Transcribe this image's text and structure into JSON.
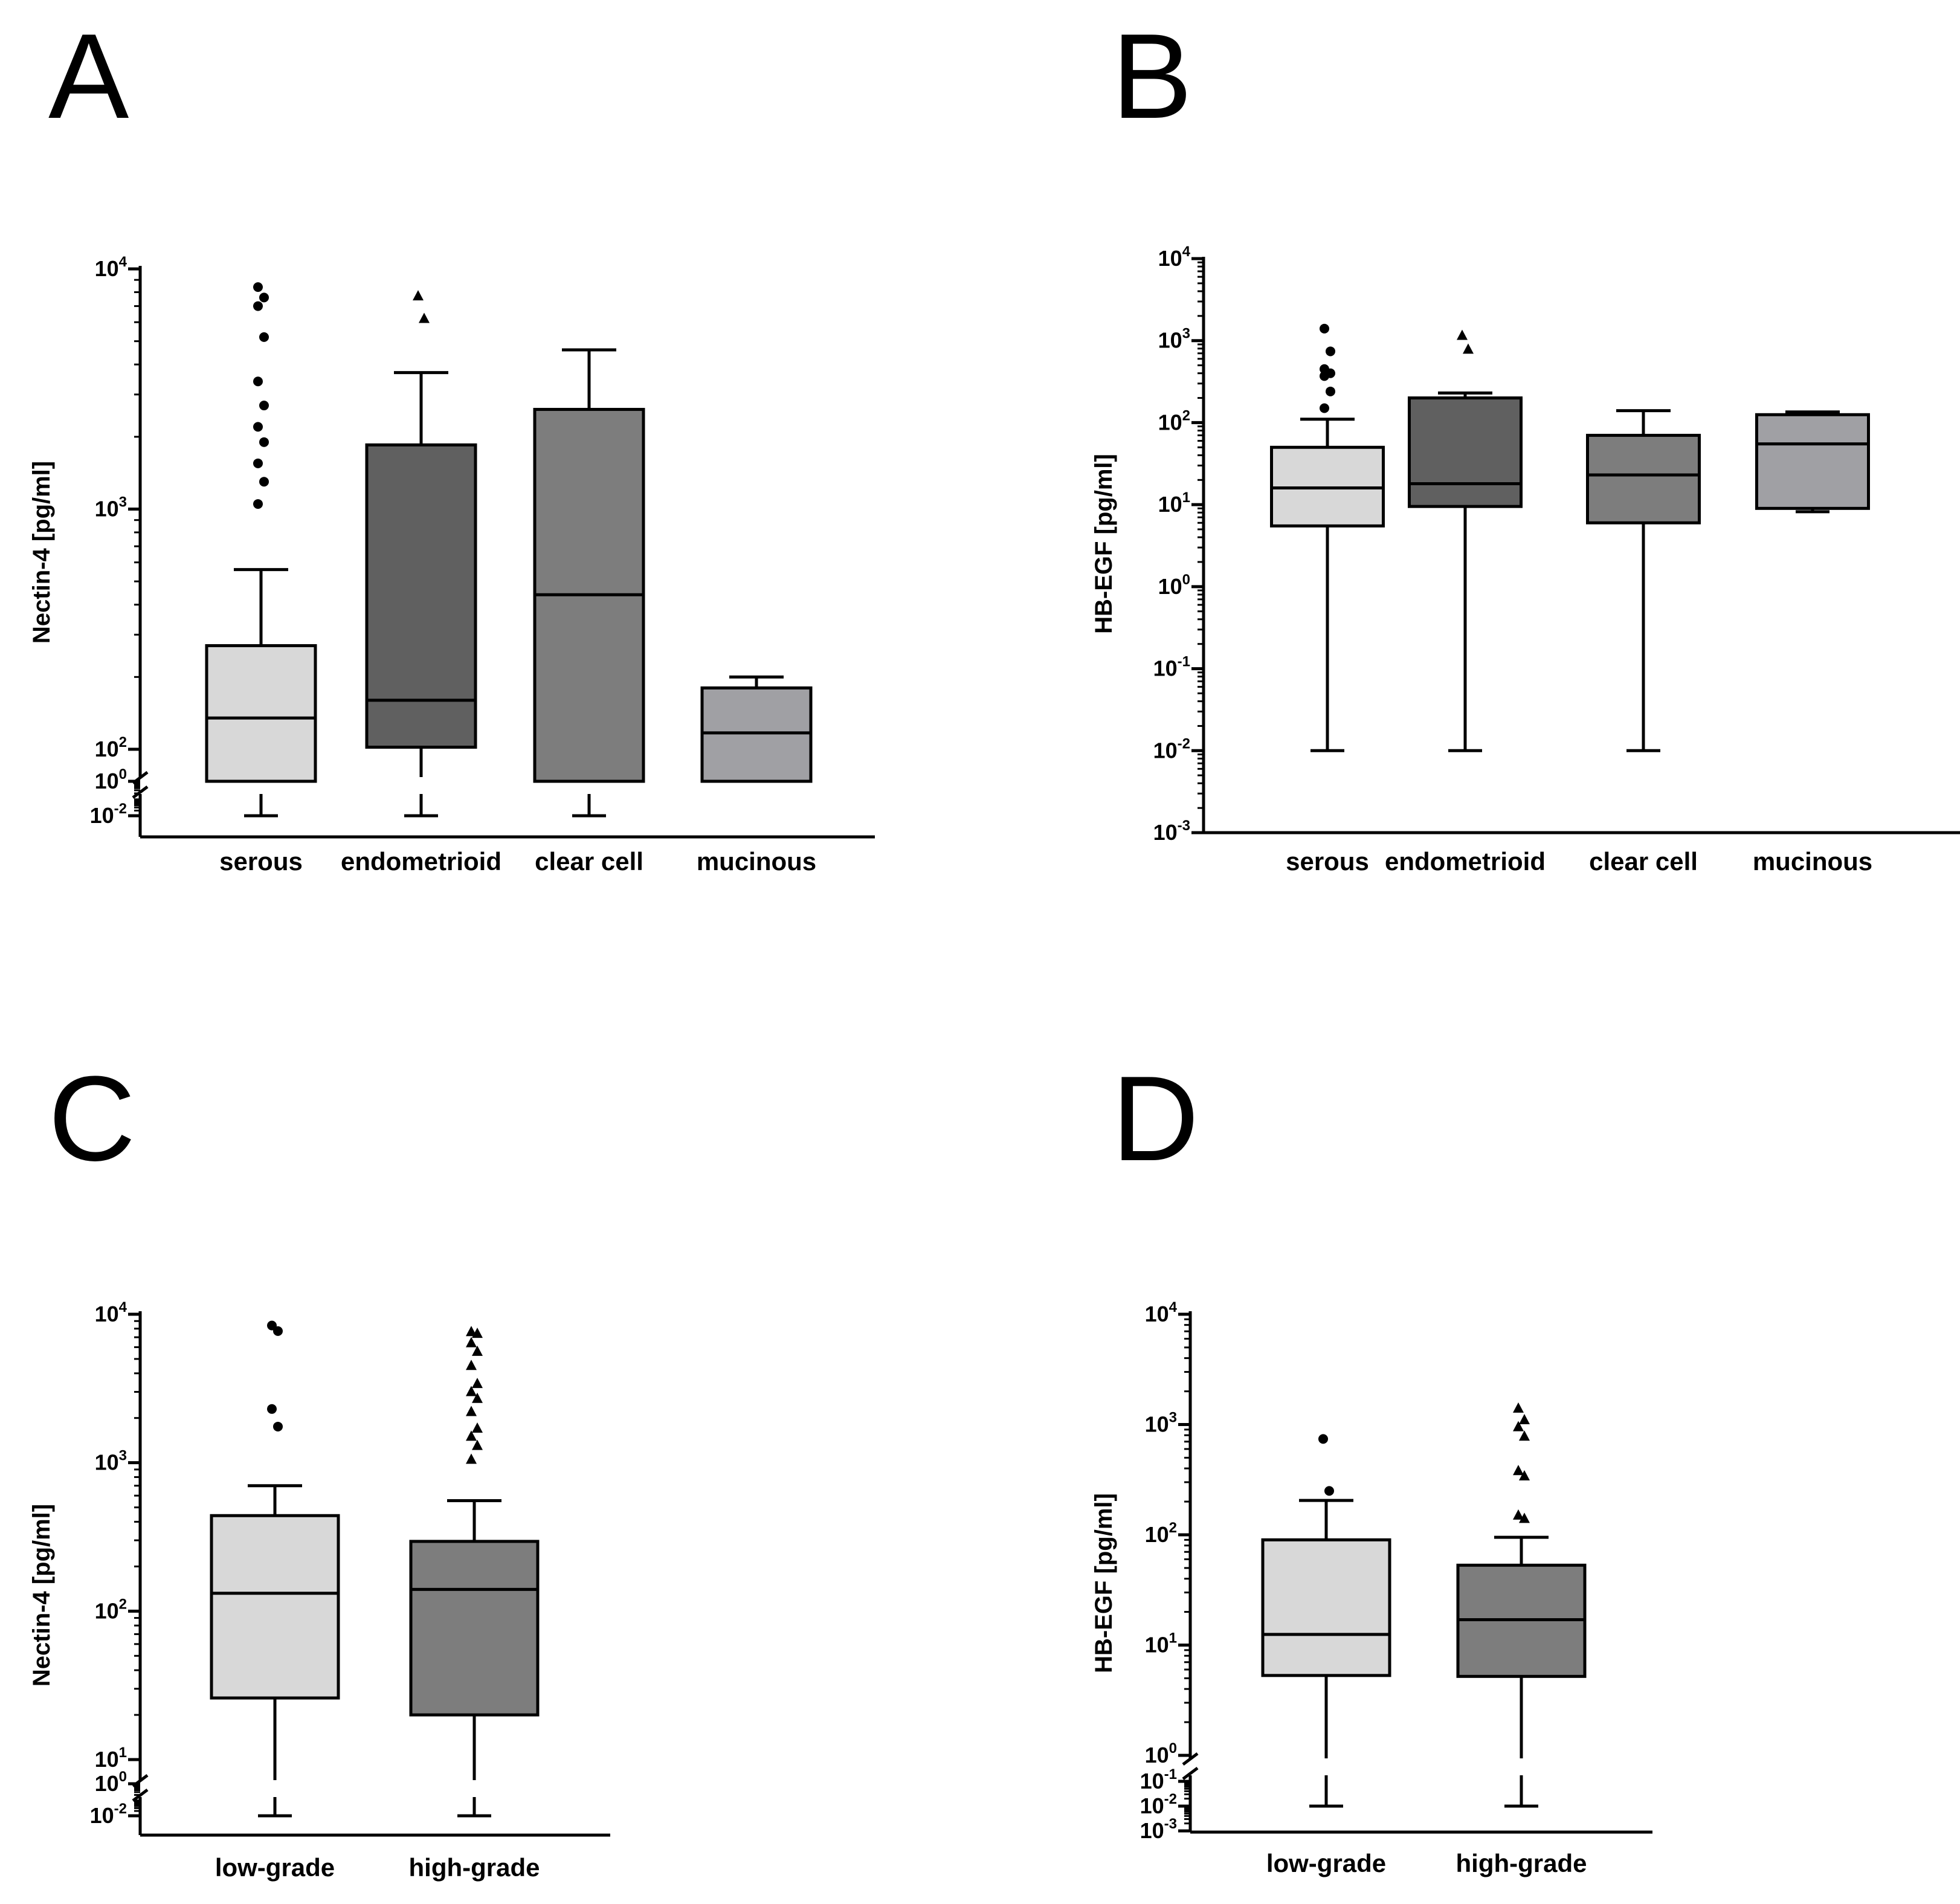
{
  "figure": {
    "panels": [
      "A",
      "B",
      "C",
      "D"
    ]
  },
  "chart_data": [
    {
      "panel": "A",
      "type": "box",
      "ylabel": "Nectin-4 [pg/ml]",
      "yscale": "log",
      "axis_break": true,
      "categories": [
        "serous",
        "endometrioid",
        "clear cell",
        "mucinous"
      ],
      "tick_labels": [
        {
          "base": "10",
          "exp": "4",
          "v": 10000
        },
        {
          "base": "10",
          "exp": "3",
          "v": 1000
        },
        {
          "base": "10",
          "exp": "2",
          "v": 100
        },
        {
          "base": "10",
          "exp": "0",
          "v": 1
        },
        {
          "base": "10",
          "exp": "-2",
          "v": 0.01
        }
      ],
      "boxes": [
        {
          "category": "serous",
          "fill": "#d8d8d8",
          "whisker_low": 0.01,
          "q1": 27,
          "median": 135,
          "q3": 270,
          "whisker_high": 560,
          "outlier_marker": "circle",
          "outliers": [
            8400,
            7600,
            7000,
            5200,
            3400,
            2700,
            2200,
            1900,
            1550,
            1300,
            1050
          ]
        },
        {
          "category": "endometrioid",
          "fill": "#606060",
          "whisker_low": 0.01,
          "q1": 102,
          "median": 160,
          "q3": 1850,
          "whisker_high": 3700,
          "outlier_marker": "triangle",
          "outliers": [
            7700,
            6200
          ]
        },
        {
          "category": "clear cell",
          "fill": "#7d7d7d",
          "whisker_low": 0.01,
          "q1": 35,
          "median": 440,
          "q3": 2600,
          "whisker_high": 4600,
          "outlier_marker": "none",
          "outliers": []
        },
        {
          "category": "mucinous",
          "fill": "#a0a0a4",
          "whisker_low": 34,
          "q1": 56,
          "median": 117,
          "q3": 180,
          "whisker_high": 200,
          "outlier_marker": "none",
          "outliers": []
        }
      ]
    },
    {
      "panel": "B",
      "type": "box",
      "ylabel": "HB-EGF [pg/ml]",
      "yscale": "log",
      "axis_break": false,
      "categories": [
        "serous",
        "endometrioid",
        "clear cell",
        "mucinous"
      ],
      "tick_labels": [
        {
          "base": "10",
          "exp": "4",
          "v": 10000
        },
        {
          "base": "10",
          "exp": "3",
          "v": 1000
        },
        {
          "base": "10",
          "exp": "2",
          "v": 100
        },
        {
          "base": "10",
          "exp": "1",
          "v": 10
        },
        {
          "base": "10",
          "exp": "0",
          "v": 1
        },
        {
          "base": "10",
          "exp": "-1",
          "v": 0.1
        },
        {
          "base": "10",
          "exp": "-2",
          "v": 0.01
        },
        {
          "base": "10",
          "exp": "-3",
          "v": 0.001
        }
      ],
      "boxes": [
        {
          "category": "serous",
          "fill": "#d8d8d8",
          "whisker_low": 0.01,
          "q1": 5.5,
          "median": 16,
          "q3": 50,
          "whisker_high": 110,
          "outlier_marker": "circle",
          "outliers": [
            1400,
            740,
            450,
            400,
            370,
            240,
            150
          ]
        },
        {
          "category": "endometrioid",
          "fill": "#606060",
          "whisker_low": 0.01,
          "q1": 9.5,
          "median": 18,
          "q3": 200,
          "whisker_high": 230,
          "outlier_marker": "triangle",
          "outliers": [
            1150,
            780
          ]
        },
        {
          "category": "clear cell",
          "fill": "#7d7d7d",
          "whisker_low": 0.01,
          "q1": 6,
          "median": 23,
          "q3": 70,
          "whisker_high": 140,
          "outlier_marker": "none",
          "outliers": []
        },
        {
          "category": "mucinous",
          "fill": "#a0a0a4",
          "whisker_low": 8.2,
          "q1": 9,
          "median": 55,
          "q3": 125,
          "whisker_high": 135,
          "outlier_marker": "none",
          "outliers": []
        }
      ]
    },
    {
      "panel": "C",
      "type": "box",
      "ylabel": "Nectin-4 [pg/ml]",
      "yscale": "log",
      "axis_break": true,
      "categories": [
        "low-grade",
        "high-grade"
      ],
      "tick_labels": [
        {
          "base": "10",
          "exp": "4",
          "v": 10000
        },
        {
          "base": "10",
          "exp": "3",
          "v": 1000
        },
        {
          "base": "10",
          "exp": "2",
          "v": 100
        },
        {
          "base": "10",
          "exp": "1",
          "v": 10
        },
        {
          "base": "10",
          "exp": "0",
          "v": 1
        },
        {
          "base": "10",
          "exp": "-2",
          "v": 0.01
        }
      ],
      "boxes": [
        {
          "category": "low-grade",
          "fill": "#d8d8d8",
          "whisker_low": 0.01,
          "q1": 26,
          "median": 132,
          "q3": 440,
          "whisker_high": 700,
          "outlier_marker": "circle",
          "outliers": [
            8400,
            7700,
            2300,
            1750
          ]
        },
        {
          "category": "high-grade",
          "fill": "#7d7d7d",
          "whisker_low": 0.01,
          "q1": 20,
          "median": 140,
          "q3": 295,
          "whisker_high": 555,
          "outlier_marker": "triangle",
          "outliers": [
            7600,
            7400,
            6400,
            5600,
            4500,
            3400,
            3000,
            2700,
            2200,
            1700,
            1500,
            1300,
            1050
          ]
        }
      ]
    },
    {
      "panel": "D",
      "type": "box",
      "ylabel": "HB-EGF [pg/ml]",
      "yscale": "log",
      "axis_break": true,
      "categories": [
        "low-grade",
        "high-grade"
      ],
      "tick_labels": [
        {
          "base": "10",
          "exp": "4",
          "v": 10000
        },
        {
          "base": "10",
          "exp": "3",
          "v": 1000
        },
        {
          "base": "10",
          "exp": "2",
          "v": 100
        },
        {
          "base": "10",
          "exp": "1",
          "v": 10
        },
        {
          "base": "10",
          "exp": "0",
          "v": 1
        },
        {
          "base": "10",
          "exp": "-1",
          "v": 0.1
        },
        {
          "base": "10",
          "exp": "-2",
          "v": 0.01
        },
        {
          "base": "10",
          "exp": "-3",
          "v": 0.001
        }
      ],
      "boxes": [
        {
          "category": "low-grade",
          "fill": "#d8d8d8",
          "whisker_low": 0.01,
          "q1": 5.3,
          "median": 12.5,
          "q3": 90,
          "whisker_high": 205,
          "outlier_marker": "circle",
          "outliers": [
            740,
            250
          ]
        },
        {
          "category": "high-grade",
          "fill": "#7d7d7d",
          "whisker_low": 0.01,
          "q1": 5.2,
          "median": 17,
          "q3": 53,
          "whisker_high": 95,
          "outlier_marker": "triangle",
          "outliers": [
            1400,
            1100,
            950,
            780,
            380,
            340,
            150,
            140
          ]
        }
      ]
    }
  ]
}
